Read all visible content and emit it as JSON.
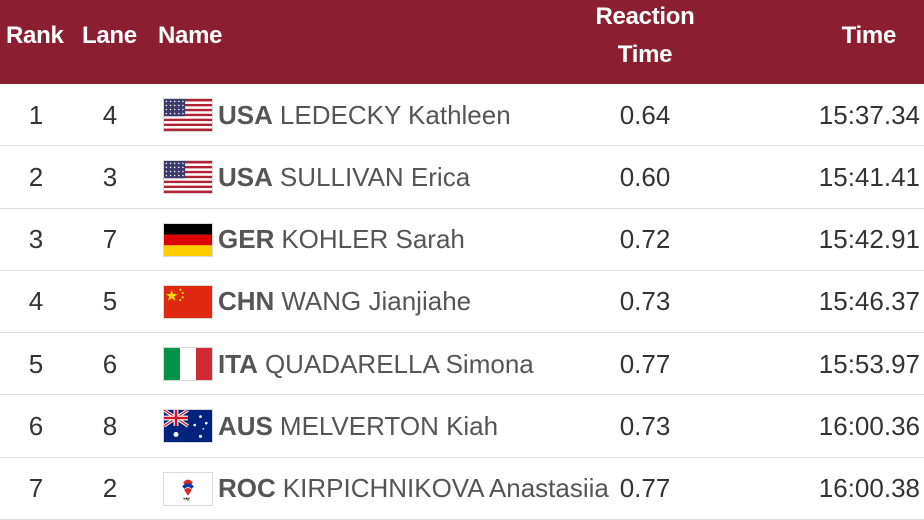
{
  "header": {
    "rank": "Rank",
    "lane": "Lane",
    "name": "Name",
    "reaction_line1": "Reaction",
    "reaction_line2": "Time",
    "time": "Time"
  },
  "rows": [
    {
      "rank": "1",
      "lane": "4",
      "noc": "USA",
      "athlete": "LEDECKY Kathleen",
      "reaction": "0.64",
      "time": "15:37.34",
      "flag_icon": "usa-flag-icon"
    },
    {
      "rank": "2",
      "lane": "3",
      "noc": "USA",
      "athlete": "SULLIVAN Erica",
      "reaction": "0.60",
      "time": "15:41.41",
      "flag_icon": "usa-flag-icon"
    },
    {
      "rank": "3",
      "lane": "7",
      "noc": "GER",
      "athlete": "KOHLER Sarah",
      "reaction": "0.72",
      "time": "15:42.91",
      "flag_icon": "germany-flag-icon"
    },
    {
      "rank": "4",
      "lane": "5",
      "noc": "CHN",
      "athlete": "WANG Jianjiahe",
      "reaction": "0.73",
      "time": "15:46.37",
      "flag_icon": "china-flag-icon"
    },
    {
      "rank": "5",
      "lane": "6",
      "noc": "ITA",
      "athlete": "QUADARELLA Simona",
      "reaction": "0.77",
      "time": "15:53.97",
      "flag_icon": "italy-flag-icon"
    },
    {
      "rank": "6",
      "lane": "8",
      "noc": "AUS",
      "athlete": "MELVERTON Kiah",
      "reaction": "0.73",
      "time": "16:00.36",
      "flag_icon": "australia-flag-icon"
    },
    {
      "rank": "7",
      "lane": "2",
      "noc": "ROC",
      "athlete": "KIRPICHNIKOVA Anastasiia",
      "reaction": "0.77",
      "time": "16:00.38",
      "flag_icon": "roc-flag-icon"
    }
  ],
  "colors": {
    "header_bg": "#8b1f31",
    "header_text": "#ffffff",
    "row_text": "#333333"
  }
}
